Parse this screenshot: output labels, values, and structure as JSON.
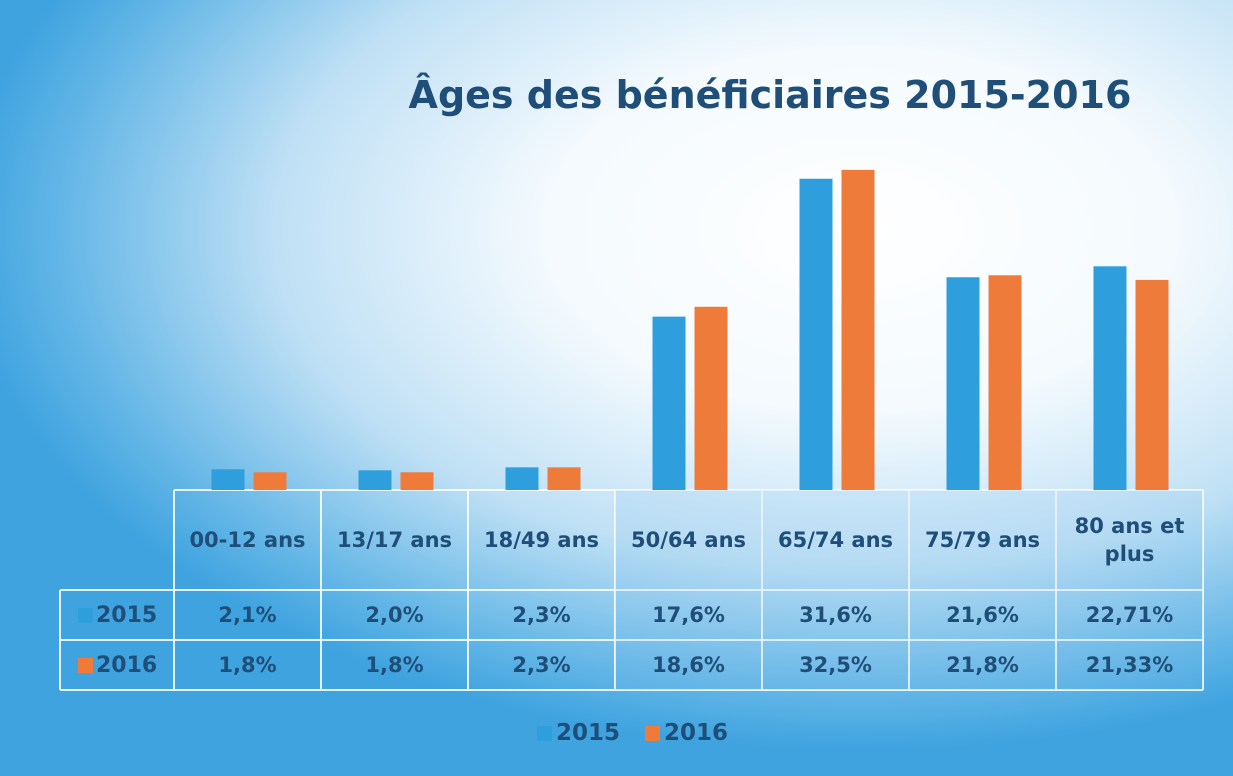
{
  "chart_data": {
    "type": "bar",
    "title": "Âges des bénéficiaires 2015-2016",
    "categories": [
      "00-12 ans",
      "13/17 ans",
      "18/49 ans",
      "50/64 ans",
      "65/74 ans",
      "75/79 ans",
      "80 ans et plus"
    ],
    "series": [
      {
        "name": "2015",
        "color": "#2e9fdc",
        "values": [
          2.1,
          2.0,
          2.3,
          17.6,
          31.6,
          21.6,
          22.71
        ],
        "value_labels": [
          "2,1%",
          "2,0%",
          "2,3%",
          "17,6%",
          "31,6%",
          "21,6%",
          "22,71%"
        ]
      },
      {
        "name": "2016",
        "color": "#ef7b3a",
        "values": [
          1.8,
          1.8,
          2.3,
          18.6,
          32.5,
          21.8,
          21.33
        ],
        "value_labels": [
          "1,8%",
          "1,8%",
          "2,3%",
          "18,6%",
          "32,5%",
          "21,8%",
          "21,33%"
        ]
      }
    ],
    "legend": "bottom"
  }
}
